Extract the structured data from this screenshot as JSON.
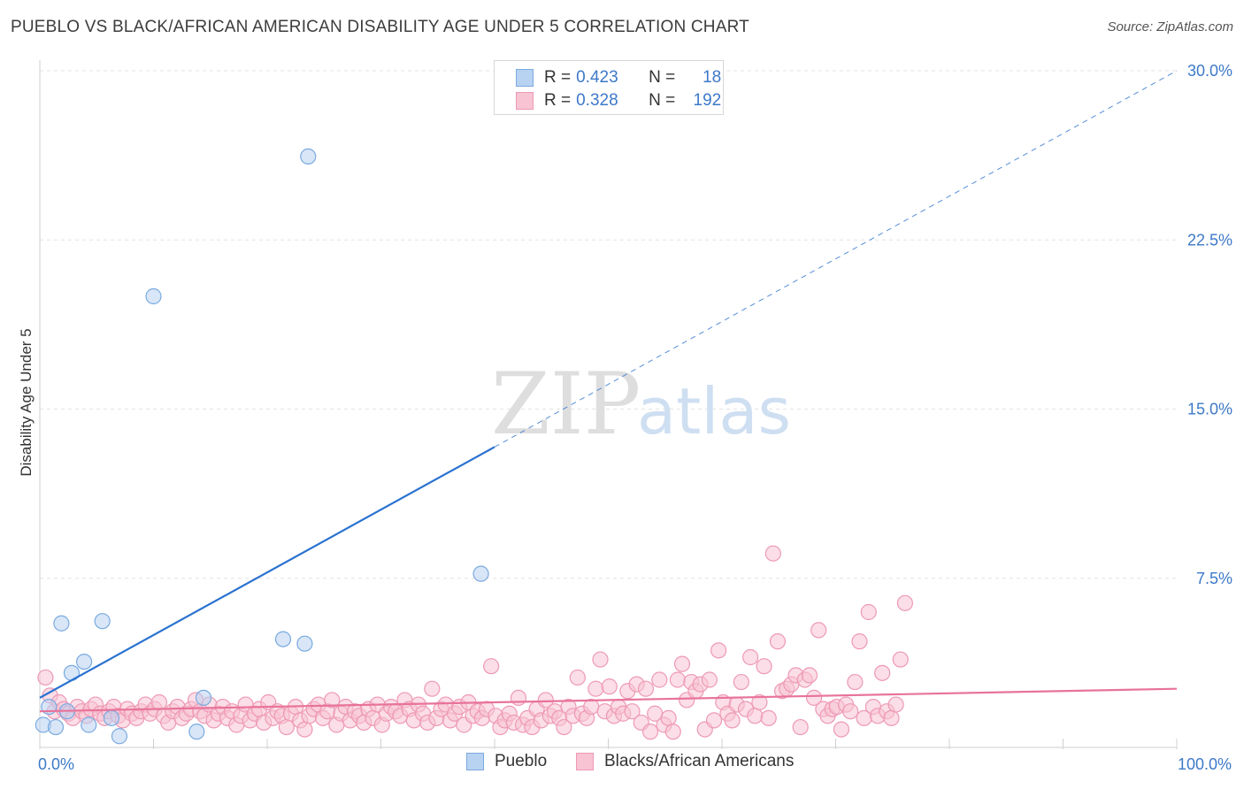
{
  "title": "PUEBLO VS BLACK/AFRICAN AMERICAN DISABILITY AGE UNDER 5 CORRELATION CHART",
  "source": "Source: ZipAtlas.com",
  "watermark": {
    "zip": "ZIP",
    "atlas": "atlas"
  },
  "colors": {
    "series1_fill": "#b8d2f2",
    "series1_stroke": "#7aaae0",
    "series1_line": "#2a72d0",
    "series2_fill": "#f8c3d3",
    "series2_stroke": "#ee99b4",
    "series2_line": "#e8739a",
    "accent_text": "#3d79c8",
    "grid": "#e3e3e3"
  },
  "legend_top": {
    "rows": [
      {
        "r_label": "R =",
        "r_value": "0.423",
        "n_label": "N =",
        "n_value": "18"
      },
      {
        "r_label": "R =",
        "r_value": "0.328",
        "n_label": "N =",
        "n_value": "192"
      }
    ]
  },
  "legend_bottom": {
    "items": [
      "Pueblo",
      "Blacks/African Americans"
    ]
  },
  "chart_data": {
    "type": "scatter",
    "title": "PUEBLO VS BLACK/AFRICAN AMERICAN DISABILITY AGE UNDER 5 CORRELATION CHART",
    "xlabel": "",
    "ylabel": "Disability Age Under 5",
    "xlim": [
      0,
      100
    ],
    "ylim": [
      0,
      30
    ],
    "y_ticks": [
      {
        "value": 7.5,
        "label": "7.5%"
      },
      {
        "value": 15.0,
        "label": "15.0%"
      },
      {
        "value": 22.5,
        "label": "22.5%"
      },
      {
        "value": 30.0,
        "label": "30.0%"
      }
    ],
    "x_ticks": [
      {
        "value": 0,
        "label": "0.0%"
      },
      {
        "value": 100,
        "label": "100.0%"
      }
    ],
    "grid": true,
    "series": [
      {
        "name": "Pueblo",
        "r": 0.423,
        "n": 18,
        "points": [
          [
            0.3,
            1.0
          ],
          [
            0.8,
            1.8
          ],
          [
            1.4,
            0.9
          ],
          [
            1.9,
            5.5
          ],
          [
            2.4,
            1.6
          ],
          [
            2.8,
            3.3
          ],
          [
            3.9,
            3.8
          ],
          [
            4.3,
            1.0
          ],
          [
            5.5,
            5.6
          ],
          [
            6.3,
            1.3
          ],
          [
            7.0,
            0.5
          ],
          [
            10.0,
            20.0
          ],
          [
            13.8,
            0.7
          ],
          [
            14.4,
            2.2
          ],
          [
            21.4,
            4.8
          ],
          [
            23.3,
            4.6
          ],
          [
            23.6,
            26.2
          ],
          [
            38.8,
            7.7
          ]
        ],
        "trend": {
          "x0": 0,
          "y0": 2.2,
          "x1": 100,
          "y1": 30.0,
          "solid_until_x": 40
        }
      },
      {
        "name": "Blacks/African Americans",
        "r": 0.328,
        "n": 192,
        "points": [
          [
            0.5,
            3.1
          ],
          [
            0.9,
            2.3
          ],
          [
            1.3,
            1.6
          ],
          [
            1.7,
            2.0
          ],
          [
            2.1,
            1.7
          ],
          [
            2.5,
            1.5
          ],
          [
            2.9,
            1.3
          ],
          [
            3.3,
            1.8
          ],
          [
            3.7,
            1.6
          ],
          [
            4.1,
            1.4
          ],
          [
            4.5,
            1.7
          ],
          [
            4.9,
            1.9
          ],
          [
            5.3,
            1.5
          ],
          [
            5.7,
            1.3
          ],
          [
            6.1,
            1.6
          ],
          [
            6.5,
            1.8
          ],
          [
            6.9,
            1.4
          ],
          [
            7.3,
            1.2
          ],
          [
            7.7,
            1.7
          ],
          [
            8.1,
            1.5
          ],
          [
            8.5,
            1.3
          ],
          [
            8.9,
            1.6
          ],
          [
            9.3,
            1.9
          ],
          [
            9.7,
            1.5
          ],
          [
            10.1,
            1.7
          ],
          [
            10.5,
            2.0
          ],
          [
            10.9,
            1.4
          ],
          [
            11.3,
            1.1
          ],
          [
            11.7,
            1.6
          ],
          [
            12.1,
            1.8
          ],
          [
            12.5,
            1.3
          ],
          [
            12.9,
            1.5
          ],
          [
            13.3,
            1.7
          ],
          [
            13.7,
            2.1
          ],
          [
            14.1,
            1.6
          ],
          [
            14.5,
            1.4
          ],
          [
            14.9,
            1.9
          ],
          [
            15.3,
            1.2
          ],
          [
            15.7,
            1.5
          ],
          [
            16.1,
            1.8
          ],
          [
            16.5,
            1.3
          ],
          [
            16.9,
            1.6
          ],
          [
            17.3,
            1.0
          ],
          [
            17.7,
            1.4
          ],
          [
            18.1,
            1.9
          ],
          [
            18.5,
            1.2
          ],
          [
            18.9,
            1.5
          ],
          [
            19.3,
            1.7
          ],
          [
            19.7,
            1.1
          ],
          [
            20.1,
            2.0
          ],
          [
            20.5,
            1.3
          ],
          [
            20.9,
            1.6
          ],
          [
            21.3,
            1.4
          ],
          [
            21.7,
            0.9
          ],
          [
            22.1,
            1.5
          ],
          [
            22.5,
            1.8
          ],
          [
            22.9,
            1.2
          ],
          [
            23.3,
            0.8
          ],
          [
            23.7,
            1.4
          ],
          [
            24.1,
            1.7
          ],
          [
            24.5,
            1.9
          ],
          [
            24.9,
            1.3
          ],
          [
            25.3,
            1.6
          ],
          [
            25.7,
            2.1
          ],
          [
            26.1,
            1.0
          ],
          [
            26.5,
            1.5
          ],
          [
            26.9,
            1.8
          ],
          [
            27.3,
            1.2
          ],
          [
            27.7,
            1.6
          ],
          [
            28.1,
            1.4
          ],
          [
            28.5,
            1.1
          ],
          [
            28.9,
            1.7
          ],
          [
            29.3,
            1.3
          ],
          [
            29.7,
            1.9
          ],
          [
            30.1,
            1.0
          ],
          [
            30.5,
            1.5
          ],
          [
            30.9,
            1.8
          ],
          [
            31.3,
            1.6
          ],
          [
            31.7,
            1.4
          ],
          [
            32.1,
            2.1
          ],
          [
            32.5,
            1.7
          ],
          [
            32.9,
            1.2
          ],
          [
            33.3,
            1.9
          ],
          [
            33.7,
            1.5
          ],
          [
            34.1,
            1.1
          ],
          [
            34.5,
            2.6
          ],
          [
            34.9,
            1.3
          ],
          [
            35.3,
            1.7
          ],
          [
            35.7,
            1.9
          ],
          [
            36.1,
            1.2
          ],
          [
            36.5,
            1.5
          ],
          [
            36.9,
            1.8
          ],
          [
            37.3,
            1.0
          ],
          [
            37.7,
            2.0
          ],
          [
            38.1,
            1.4
          ],
          [
            38.5,
            1.6
          ],
          [
            38.9,
            1.3
          ],
          [
            39.3,
            1.7
          ],
          [
            39.7,
            3.6
          ],
          [
            40.1,
            1.4
          ],
          [
            40.5,
            0.9
          ],
          [
            40.9,
            1.2
          ],
          [
            41.3,
            1.5
          ],
          [
            41.7,
            1.1
          ],
          [
            42.1,
            2.2
          ],
          [
            42.5,
            1.0
          ],
          [
            42.9,
            1.3
          ],
          [
            43.3,
            0.9
          ],
          [
            43.7,
            1.7
          ],
          [
            44.1,
            1.2
          ],
          [
            44.5,
            2.1
          ],
          [
            44.9,
            1.4
          ],
          [
            45.3,
            1.6
          ],
          [
            45.7,
            1.3
          ],
          [
            46.1,
            0.9
          ],
          [
            46.5,
            1.8
          ],
          [
            46.9,
            1.4
          ],
          [
            47.3,
            3.1
          ],
          [
            47.7,
            1.5
          ],
          [
            48.1,
            1.3
          ],
          [
            48.5,
            1.8
          ],
          [
            48.9,
            2.6
          ],
          [
            49.3,
            3.9
          ],
          [
            49.7,
            1.6
          ],
          [
            50.1,
            2.7
          ],
          [
            50.5,
            1.4
          ],
          [
            50.9,
            1.8
          ],
          [
            51.3,
            1.5
          ],
          [
            51.7,
            2.5
          ],
          [
            52.1,
            1.6
          ],
          [
            52.5,
            2.8
          ],
          [
            52.9,
            1.1
          ],
          [
            53.3,
            2.6
          ],
          [
            53.7,
            0.7
          ],
          [
            54.1,
            1.5
          ],
          [
            54.5,
            3.0
          ],
          [
            54.9,
            1.0
          ],
          [
            55.3,
            1.3
          ],
          [
            55.7,
            0.7
          ],
          [
            56.1,
            3.0
          ],
          [
            56.5,
            3.7
          ],
          [
            56.9,
            2.1
          ],
          [
            57.3,
            2.9
          ],
          [
            57.7,
            2.5
          ],
          [
            58.1,
            2.8
          ],
          [
            58.5,
            0.8
          ],
          [
            58.9,
            3.0
          ],
          [
            59.3,
            1.2
          ],
          [
            59.7,
            4.3
          ],
          [
            60.1,
            2.0
          ],
          [
            60.5,
            1.5
          ],
          [
            60.9,
            1.2
          ],
          [
            61.3,
            1.9
          ],
          [
            61.7,
            2.9
          ],
          [
            62.1,
            1.7
          ],
          [
            62.5,
            4.0
          ],
          [
            62.9,
            1.4
          ],
          [
            63.3,
            2.0
          ],
          [
            63.7,
            3.6
          ],
          [
            64.1,
            1.3
          ],
          [
            64.5,
            8.6
          ],
          [
            64.9,
            4.7
          ],
          [
            65.3,
            2.5
          ],
          [
            65.7,
            2.6
          ],
          [
            66.1,
            2.8
          ],
          [
            66.5,
            3.2
          ],
          [
            66.9,
            0.9
          ],
          [
            67.3,
            3.0
          ],
          [
            67.7,
            3.2
          ],
          [
            68.1,
            2.2
          ],
          [
            68.5,
            5.2
          ],
          [
            68.9,
            1.7
          ],
          [
            69.3,
            1.4
          ],
          [
            69.7,
            1.7
          ],
          [
            70.1,
            1.8
          ],
          [
            70.5,
            0.8
          ],
          [
            70.9,
            1.9
          ],
          [
            71.3,
            1.6
          ],
          [
            71.7,
            2.9
          ],
          [
            72.1,
            4.7
          ],
          [
            72.5,
            1.3
          ],
          [
            72.9,
            6.0
          ],
          [
            73.3,
            1.8
          ],
          [
            73.7,
            1.4
          ],
          [
            74.1,
            3.3
          ],
          [
            74.5,
            1.6
          ],
          [
            74.9,
            1.3
          ],
          [
            75.3,
            1.9
          ],
          [
            75.7,
            3.9
          ],
          [
            76.1,
            6.4
          ]
        ],
        "trend": {
          "x0": 0,
          "y0": 1.6,
          "x1": 100,
          "y1": 2.6,
          "solid_until_x": 100
        }
      }
    ]
  }
}
